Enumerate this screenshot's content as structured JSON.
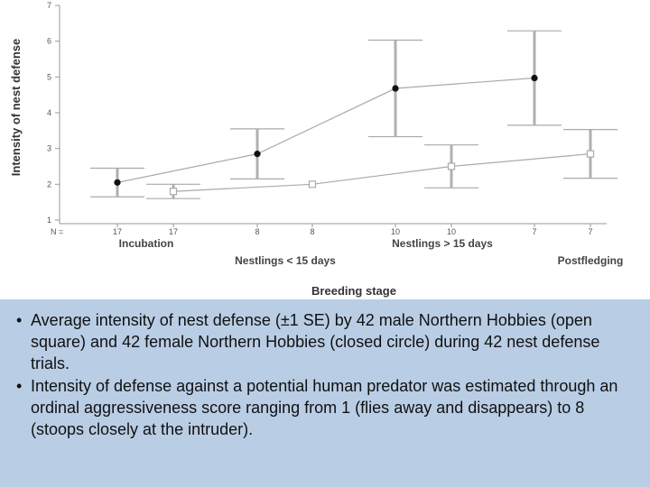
{
  "chart_data": {
    "type": "line",
    "ylabel": "Intensity of nest defense",
    "xlabel": "Breeding stage",
    "ylim": [
      1,
      7
    ],
    "yticks": [
      "1",
      "2",
      "3",
      "4",
      "5",
      "6",
      "7"
    ],
    "n_label": "N =",
    "stage_labels": [
      {
        "text": "Incubation",
        "row": "upper",
        "anchor": 1
      },
      {
        "text": "Nestlings < 15 days",
        "row": "lower",
        "anchor": 3
      },
      {
        "text": "Nestlings > 15 days",
        "row": "upper",
        "anchor": 5
      },
      {
        "text": "Postfledging",
        "row": "lower",
        "anchor": 7
      }
    ],
    "positions": [
      {
        "n": "17",
        "x": 0
      },
      {
        "n": "17",
        "x": 1
      },
      {
        "n": "8",
        "x": 2
      },
      {
        "n": "8",
        "x": 3
      },
      {
        "n": "10",
        "x": 4
      },
      {
        "n": "10",
        "x": 5
      },
      {
        "n": "7",
        "x": 6
      },
      {
        "n": "7",
        "x": 7
      }
    ],
    "series": [
      {
        "marker": "closed-circle",
        "color": "#111111",
        "points": [
          {
            "x": 0,
            "y": 2.05,
            "se": 0.4
          },
          {
            "x": 2,
            "y": 2.85,
            "se": 0.7
          },
          {
            "x": 4,
            "y": 4.68,
            "se": 1.35
          },
          {
            "x": 6,
            "y": 4.97,
            "se": 1.32
          }
        ]
      },
      {
        "marker": "open-square",
        "color": "#aaaaaa",
        "points": [
          {
            "x": 1,
            "y": 1.8,
            "se": 0.2
          },
          {
            "x": 3,
            "y": 2.0,
            "se": 0.0
          },
          {
            "x": 5,
            "y": 2.5,
            "se": 0.6
          },
          {
            "x": 7,
            "y": 2.85,
            "se": 0.68
          }
        ]
      }
    ]
  },
  "caption": {
    "bullet": "•",
    "items": [
      "Average intensity of nest defense (±1 SE) by 42 male Northern Hobbies (open square) and 42 female Northern Hobbies (closed circle) during 42 nest defense trials.",
      "Intensity of defense against a potential human predator was estimated through an ordinal aggressiveness score ranging from 1 (flies away and disappears) to 8 (stoops closely at the intruder)."
    ]
  }
}
